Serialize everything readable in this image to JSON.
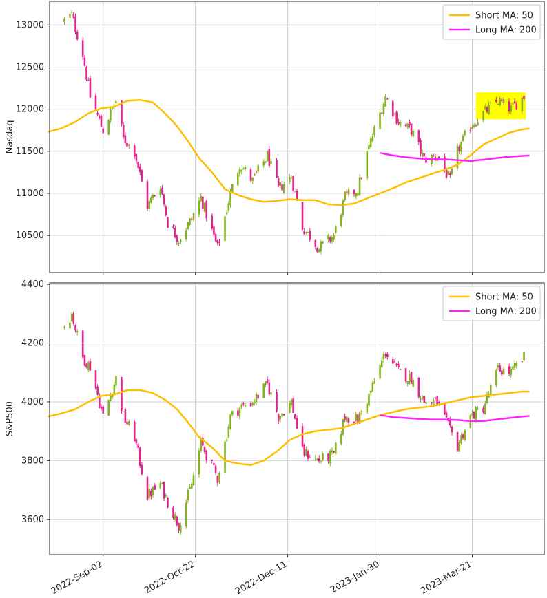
{
  "chart_data": [
    {
      "type": "candlestick",
      "ylabel": "Nasdaq",
      "ylim": [
        10060,
        13280
      ],
      "yticks": [
        10500,
        11000,
        11500,
        12000,
        12500,
        13000
      ],
      "grid": true,
      "legend": {
        "position": "top-right",
        "entries": [
          "Short MA: 50",
          "Long MA: 200"
        ]
      },
      "colors": {
        "up": "#86b320",
        "down": "#e0258f",
        "short_ma": "#ffbf00",
        "long_ma": "#ff22ff",
        "highlight": "#ffff00"
      },
      "highlight": {
        "x_start": "2023-03-23",
        "x_end": "2023-04-19",
        "y_low": 11880,
        "y_high": 12200
      },
      "ohlc_anchors": [
        {
          "date": "2022-08-12",
          "close": 13050
        },
        {
          "date": "2022-08-16",
          "close": 13120
        },
        {
          "date": "2022-08-22",
          "close": 12650
        },
        {
          "date": "2022-08-26",
          "close": 12150
        },
        {
          "date": "2022-09-02",
          "close": 11750
        },
        {
          "date": "2022-09-09",
          "close": 12100
        },
        {
          "date": "2022-09-13",
          "close": 11650
        },
        {
          "date": "2022-09-19",
          "close": 11500
        },
        {
          "date": "2022-09-26",
          "close": 10850
        },
        {
          "date": "2022-10-03",
          "close": 11100
        },
        {
          "date": "2022-10-07",
          "close": 10650
        },
        {
          "date": "2022-10-13",
          "close": 10450
        },
        {
          "date": "2022-10-20",
          "close": 10700
        },
        {
          "date": "2022-10-25",
          "close": 10950
        },
        {
          "date": "2022-11-03",
          "close": 10350
        },
        {
          "date": "2022-11-10",
          "close": 11000
        },
        {
          "date": "2022-11-15",
          "close": 11350
        },
        {
          "date": "2022-11-22",
          "close": 11150
        },
        {
          "date": "2022-11-30",
          "close": 11450
        },
        {
          "date": "2022-12-06",
          "close": 11050
        },
        {
          "date": "2022-12-13",
          "close": 11200
        },
        {
          "date": "2022-12-19",
          "close": 10600
        },
        {
          "date": "2022-12-28",
          "close": 10350
        },
        {
          "date": "2023-01-05",
          "close": 10500
        },
        {
          "date": "2023-01-11",
          "close": 10950
        },
        {
          "date": "2023-01-18",
          "close": 11050
        },
        {
          "date": "2023-01-24",
          "close": 11550
        },
        {
          "date": "2023-02-02",
          "close": 12150
        },
        {
          "date": "2023-02-09",
          "close": 11850
        },
        {
          "date": "2023-02-16",
          "close": 11750
        },
        {
          "date": "2023-02-23",
          "close": 11400
        },
        {
          "date": "2023-03-02",
          "close": 11450
        },
        {
          "date": "2023-03-09",
          "close": 11150
        },
        {
          "date": "2023-03-13",
          "close": 11500
        },
        {
          "date": "2023-03-20",
          "close": 11800
        },
        {
          "date": "2023-03-27",
          "close": 11950
        },
        {
          "date": "2023-04-04",
          "close": 12100
        },
        {
          "date": "2023-04-11",
          "close": 12000
        },
        {
          "date": "2023-04-18",
          "close": 12150
        }
      ],
      "short_ma": [
        {
          "date": "2022-08-03",
          "value": 11730
        },
        {
          "date": "2022-08-10",
          "value": 11770
        },
        {
          "date": "2022-08-18",
          "value": 11850
        },
        {
          "date": "2022-08-25",
          "value": 11950
        },
        {
          "date": "2022-09-01",
          "value": 12010
        },
        {
          "date": "2022-09-08",
          "value": 12030
        },
        {
          "date": "2022-09-15",
          "value": 12100
        },
        {
          "date": "2022-09-22",
          "value": 12110
        },
        {
          "date": "2022-09-29",
          "value": 12080
        },
        {
          "date": "2022-10-06",
          "value": 11940
        },
        {
          "date": "2022-10-12",
          "value": 11800
        },
        {
          "date": "2022-10-18",
          "value": 11620
        },
        {
          "date": "2022-10-24",
          "value": 11420
        },
        {
          "date": "2022-10-31",
          "value": 11250
        },
        {
          "date": "2022-11-07",
          "value": 11050
        },
        {
          "date": "2022-11-14",
          "value": 10980
        },
        {
          "date": "2022-11-21",
          "value": 10930
        },
        {
          "date": "2022-11-28",
          "value": 10900
        },
        {
          "date": "2022-12-05",
          "value": 10910
        },
        {
          "date": "2022-12-12",
          "value": 10930
        },
        {
          "date": "2022-12-19",
          "value": 10920
        },
        {
          "date": "2022-12-26",
          "value": 10920
        },
        {
          "date": "2023-01-02",
          "value": 10870
        },
        {
          "date": "2023-01-09",
          "value": 10860
        },
        {
          "date": "2023-01-16",
          "value": 10880
        },
        {
          "date": "2023-01-23",
          "value": 10940
        },
        {
          "date": "2023-01-30",
          "value": 11000
        },
        {
          "date": "2023-02-06",
          "value": 11060
        },
        {
          "date": "2023-02-13",
          "value": 11130
        },
        {
          "date": "2023-02-20",
          "value": 11180
        },
        {
          "date": "2023-02-27",
          "value": 11230
        },
        {
          "date": "2023-03-06",
          "value": 11280
        },
        {
          "date": "2023-03-13",
          "value": 11340
        },
        {
          "date": "2023-03-20",
          "value": 11450
        },
        {
          "date": "2023-03-27",
          "value": 11580
        },
        {
          "date": "2023-04-03",
          "value": 11650
        },
        {
          "date": "2023-04-10",
          "value": 11720
        },
        {
          "date": "2023-04-17",
          "value": 11760
        },
        {
          "date": "2023-04-21",
          "value": 11770
        }
      ],
      "long_ma": [
        {
          "date": "2023-01-30",
          "value": 11480
        },
        {
          "date": "2023-02-06",
          "value": 11450
        },
        {
          "date": "2023-02-13",
          "value": 11430
        },
        {
          "date": "2023-02-20",
          "value": 11415
        },
        {
          "date": "2023-02-27",
          "value": 11405
        },
        {
          "date": "2023-03-06",
          "value": 11405
        },
        {
          "date": "2023-03-13",
          "value": 11395
        },
        {
          "date": "2023-03-20",
          "value": 11385
        },
        {
          "date": "2023-03-27",
          "value": 11400
        },
        {
          "date": "2023-04-03",
          "value": 11420
        },
        {
          "date": "2023-04-10",
          "value": 11435
        },
        {
          "date": "2023-04-17",
          "value": 11445
        },
        {
          "date": "2023-04-21",
          "value": 11450
        }
      ]
    },
    {
      "type": "candlestick",
      "ylabel": "S&P500",
      "ylim": [
        3480,
        4405
      ],
      "yticks": [
        3600,
        3800,
        4000,
        4200,
        4400
      ],
      "grid": true,
      "legend": {
        "position": "top-right",
        "entries": [
          "Short MA: 50",
          "Long MA: 200"
        ]
      },
      "colors": {
        "up": "#86b320",
        "down": "#e0258f",
        "short_ma": "#ffbf00",
        "long_ma": "#ff22ff"
      },
      "ohlc_anchors": [
        {
          "date": "2022-08-12",
          "close": 4260
        },
        {
          "date": "2022-08-16",
          "close": 4300
        },
        {
          "date": "2022-08-22",
          "close": 4150
        },
        {
          "date": "2022-08-26",
          "close": 4120
        },
        {
          "date": "2022-09-02",
          "close": 3950
        },
        {
          "date": "2022-09-09",
          "close": 4080
        },
        {
          "date": "2022-09-13",
          "close": 3950
        },
        {
          "date": "2022-09-19",
          "close": 3880
        },
        {
          "date": "2022-09-26",
          "close": 3680
        },
        {
          "date": "2022-10-03",
          "close": 3720
        },
        {
          "date": "2022-10-07",
          "close": 3660
        },
        {
          "date": "2022-10-13",
          "close": 3580
        },
        {
          "date": "2022-10-20",
          "close": 3720
        },
        {
          "date": "2022-10-25",
          "close": 3860
        },
        {
          "date": "2022-11-03",
          "close": 3740
        },
        {
          "date": "2022-11-10",
          "close": 3950
        },
        {
          "date": "2022-11-15",
          "close": 3980
        },
        {
          "date": "2022-11-22",
          "close": 4000
        },
        {
          "date": "2022-11-30",
          "close": 4060
        },
        {
          "date": "2022-12-06",
          "close": 3950
        },
        {
          "date": "2022-12-13",
          "close": 4000
        },
        {
          "date": "2022-12-19",
          "close": 3830
        },
        {
          "date": "2022-12-28",
          "close": 3800
        },
        {
          "date": "2023-01-05",
          "close": 3820
        },
        {
          "date": "2023-01-11",
          "close": 3950
        },
        {
          "date": "2023-01-18",
          "close": 3940
        },
        {
          "date": "2023-01-24",
          "close": 4020
        },
        {
          "date": "2023-02-02",
          "close": 4170
        },
        {
          "date": "2023-02-09",
          "close": 4100
        },
        {
          "date": "2023-02-16",
          "close": 4080
        },
        {
          "date": "2023-02-23",
          "close": 4000
        },
        {
          "date": "2023-03-02",
          "close": 4000
        },
        {
          "date": "2023-03-09",
          "close": 3900
        },
        {
          "date": "2023-03-13",
          "close": 3850
        },
        {
          "date": "2023-03-20",
          "close": 3950
        },
        {
          "date": "2023-03-27",
          "close": 3980
        },
        {
          "date": "2023-04-04",
          "close": 4110
        },
        {
          "date": "2023-04-11",
          "close": 4100
        },
        {
          "date": "2023-04-18",
          "close": 4150
        }
      ],
      "short_ma": [
        {
          "date": "2022-08-03",
          "value": 3950
        },
        {
          "date": "2022-08-10",
          "value": 3960
        },
        {
          "date": "2022-08-18",
          "value": 3975
        },
        {
          "date": "2022-08-25",
          "value": 4000
        },
        {
          "date": "2022-09-01",
          "value": 4020
        },
        {
          "date": "2022-09-08",
          "value": 4025
        },
        {
          "date": "2022-09-15",
          "value": 4040
        },
        {
          "date": "2022-09-22",
          "value": 4040
        },
        {
          "date": "2022-09-29",
          "value": 4030
        },
        {
          "date": "2022-10-06",
          "value": 4005
        },
        {
          "date": "2022-10-12",
          "value": 3975
        },
        {
          "date": "2022-10-18",
          "value": 3930
        },
        {
          "date": "2022-10-24",
          "value": 3880
        },
        {
          "date": "2022-10-31",
          "value": 3845
        },
        {
          "date": "2022-11-07",
          "value": 3800
        },
        {
          "date": "2022-11-14",
          "value": 3790
        },
        {
          "date": "2022-11-21",
          "value": 3785
        },
        {
          "date": "2022-11-28",
          "value": 3800
        },
        {
          "date": "2022-12-05",
          "value": 3830
        },
        {
          "date": "2022-12-12",
          "value": 3870
        },
        {
          "date": "2022-12-19",
          "value": 3890
        },
        {
          "date": "2022-12-26",
          "value": 3900
        },
        {
          "date": "2023-01-02",
          "value": 3905
        },
        {
          "date": "2023-01-09",
          "value": 3910
        },
        {
          "date": "2023-01-16",
          "value": 3925
        },
        {
          "date": "2023-01-23",
          "value": 3940
        },
        {
          "date": "2023-01-30",
          "value": 3955
        },
        {
          "date": "2023-02-06",
          "value": 3965
        },
        {
          "date": "2023-02-13",
          "value": 3975
        },
        {
          "date": "2023-02-20",
          "value": 3980
        },
        {
          "date": "2023-02-27",
          "value": 3985
        },
        {
          "date": "2023-03-06",
          "value": 3995
        },
        {
          "date": "2023-03-13",
          "value": 4005
        },
        {
          "date": "2023-03-20",
          "value": 4015
        },
        {
          "date": "2023-03-27",
          "value": 4020
        },
        {
          "date": "2023-04-03",
          "value": 4025
        },
        {
          "date": "2023-04-10",
          "value": 4030
        },
        {
          "date": "2023-04-17",
          "value": 4035
        },
        {
          "date": "2023-04-21",
          "value": 4035
        }
      ],
      "long_ma": [
        {
          "date": "2023-01-30",
          "value": 3955
        },
        {
          "date": "2023-02-06",
          "value": 3948
        },
        {
          "date": "2023-02-13",
          "value": 3945
        },
        {
          "date": "2023-02-20",
          "value": 3942
        },
        {
          "date": "2023-02-27",
          "value": 3940
        },
        {
          "date": "2023-03-06",
          "value": 3940
        },
        {
          "date": "2023-03-13",
          "value": 3938
        },
        {
          "date": "2023-03-20",
          "value": 3935
        },
        {
          "date": "2023-03-27",
          "value": 3935
        },
        {
          "date": "2023-04-03",
          "value": 3940
        },
        {
          "date": "2023-04-10",
          "value": 3945
        },
        {
          "date": "2023-04-17",
          "value": 3950
        },
        {
          "date": "2023-04-21",
          "value": 3952
        }
      ]
    }
  ],
  "xaxis": {
    "start": "2022-08-04",
    "end": "2023-04-29",
    "ticks": [
      {
        "date": "2022-09-02",
        "label": "2022-Sep-02"
      },
      {
        "date": "2022-10-22",
        "label": "2022-Oct-22"
      },
      {
        "date": "2022-12-11",
        "label": "2022-Dec-11"
      },
      {
        "date": "2023-01-30",
        "label": "2023-Jan-30"
      },
      {
        "date": "2023-03-21",
        "label": "2023-Mar-21"
      }
    ]
  }
}
